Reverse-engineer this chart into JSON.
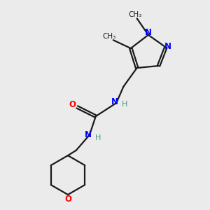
{
  "bg_color": "#ebebeb",
  "bond_color": "#1a1a1a",
  "N_color": "#0000ff",
  "O_color": "#ff0000",
  "H_color": "#4a9a8a",
  "figsize": [
    3.0,
    3.0
  ],
  "dpi": 100,
  "xlim": [
    0,
    10
  ],
  "ylim": [
    0,
    10
  ]
}
